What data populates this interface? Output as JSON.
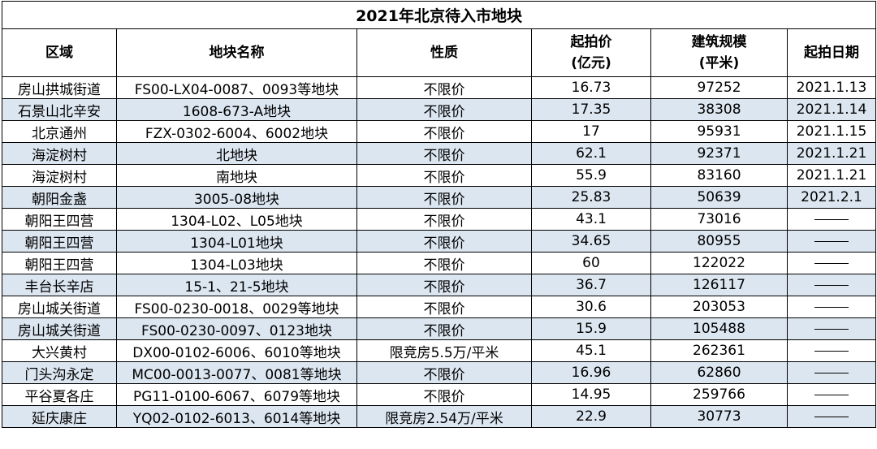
{
  "table": {
    "title": "2021年北京待入市地块",
    "headers": [
      {
        "line1": "区域",
        "line2": ""
      },
      {
        "line1": "地块名称",
        "line2": ""
      },
      {
        "line1": "性质",
        "line2": ""
      },
      {
        "line1": "起拍价",
        "line2": "(亿元)"
      },
      {
        "line1": "建筑规模",
        "line2": "(平米)"
      },
      {
        "line1": "起拍日期",
        "line2": ""
      }
    ],
    "rows": [
      {
        "area": "房山拱城街道",
        "name": "FS00-LX04-0087、0093等地块",
        "nature": "不限价",
        "price": "16.73",
        "scale": "97252",
        "date": "2021.1.13"
      },
      {
        "area": "石景山北辛安",
        "name": "1608-673-A地块",
        "nature": "不限价",
        "price": "17.35",
        "scale": "38308",
        "date": "2021.1.14"
      },
      {
        "area": "北京通州",
        "name": "FZX-0302-6004、6002地块",
        "nature": "不限价",
        "price": "17",
        "scale": "95931",
        "date": "2021.1.15"
      },
      {
        "area": "海淀树村",
        "name": "北地块",
        "nature": "不限价",
        "price": "62.1",
        "scale": "92371",
        "date": "2021.1.21"
      },
      {
        "area": "海淀树村",
        "name": "南地块",
        "nature": "不限价",
        "price": "55.9",
        "scale": "83160",
        "date": "2021.1.21"
      },
      {
        "area": "朝阳金盏",
        "name": "3005-08地块",
        "nature": "不限价",
        "price": "25.83",
        "scale": "50639",
        "date": "2021.2.1"
      },
      {
        "area": "朝阳王四营",
        "name": "1304-L02、L05地块",
        "nature": "不限价",
        "price": "43.1",
        "scale": "73016",
        "date": ""
      },
      {
        "area": "朝阳王四营",
        "name": "1304-L01地块",
        "nature": "不限价",
        "price": "34.65",
        "scale": "80955",
        "date": ""
      },
      {
        "area": "朝阳王四营",
        "name": "1304-L03地块",
        "nature": "不限价",
        "price": "60",
        "scale": "122022",
        "date": ""
      },
      {
        "area": "丰台长辛店",
        "name": "15-1、21-5地块",
        "nature": "不限价",
        "price": "36.7",
        "scale": "126117",
        "date": ""
      },
      {
        "area": "房山城关街道",
        "name": "FS00-0230-0018、0029等地块",
        "nature": "不限价",
        "price": "30.6",
        "scale": "203053",
        "date": ""
      },
      {
        "area": "房山城关街道",
        "name": "FS00-0230-0097、0123地块",
        "nature": "不限价",
        "price": "15.9",
        "scale": "105488",
        "date": ""
      },
      {
        "area": "大兴黄村",
        "name": "DX00-0102-6006、6010等地块",
        "nature": "限竞房5.5万/平米",
        "price": "45.1",
        "scale": "262361",
        "date": ""
      },
      {
        "area": "门头沟永定",
        "name": "MC00-0013-0077、0081等地块",
        "nature": "不限价",
        "price": "16.96",
        "scale": "62860",
        "date": ""
      },
      {
        "area": "平谷夏各庄",
        "name": "PG11-0100-6067、6079等地块",
        "nature": "不限价",
        "price": "14.95",
        "scale": "259766",
        "date": ""
      },
      {
        "area": "延庆康庄",
        "name": "YQ02-0102-6013、6014等地块",
        "nature": "限竞房2.54万/平米",
        "price": "22.9",
        "scale": "30773",
        "date": ""
      }
    ]
  },
  "colors": {
    "stripe": "#dce6f1",
    "border": "#000000"
  }
}
